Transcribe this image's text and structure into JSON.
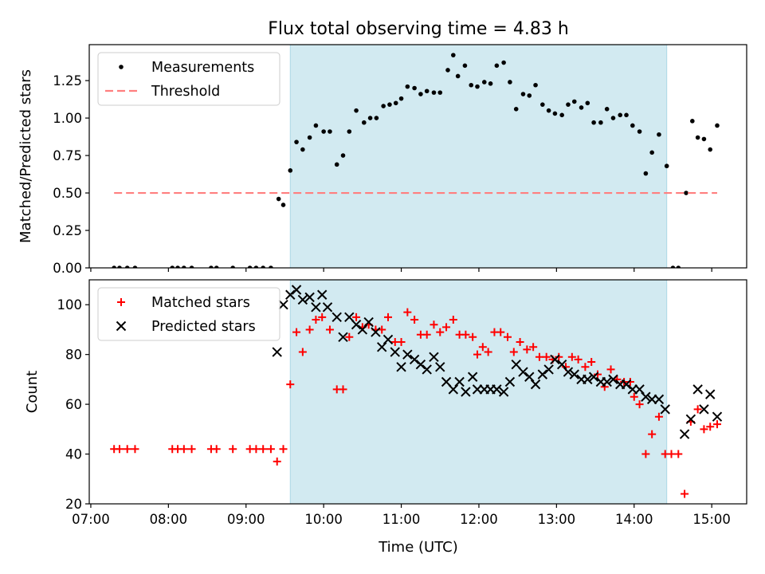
{
  "title": "Flux total observing time = 4.83 h",
  "xlabel": "Time (UTC)",
  "x_ticks": [
    "07:00",
    "08:00",
    "09:00",
    "10:00",
    "11:00",
    "12:00",
    "13:00",
    "14:00",
    "15:00"
  ],
  "chart_data": [
    {
      "type": "scatter",
      "title": "Flux total observing time = 4.83 h",
      "xlabel": "",
      "ylabel": "Matched/Predicted stars",
      "x_unit": "hours UTC (decimal)",
      "xlim": [
        6.98,
        15.45
      ],
      "ylim": [
        0.0,
        1.49
      ],
      "yticks": [
        "0.00",
        "0.25",
        "0.50",
        "0.75",
        "1.00",
        "1.25"
      ],
      "shaded_interval": [
        9.57,
        14.42
      ],
      "shade_color": "#add8e6",
      "legend": [
        "Measurements",
        "Threshold"
      ],
      "legend_location": "upper-left",
      "series": [
        {
          "name": "Measurements",
          "marker": "dot",
          "color": "#000000",
          "points": [
            [
              7.3,
              0
            ],
            [
              7.37,
              0
            ],
            [
              7.47,
              0
            ],
            [
              7.57,
              0
            ],
            [
              8.05,
              0
            ],
            [
              8.12,
              0
            ],
            [
              8.2,
              0
            ],
            [
              8.3,
              0
            ],
            [
              8.55,
              0
            ],
            [
              8.62,
              0
            ],
            [
              8.83,
              0
            ],
            [
              9.05,
              0
            ],
            [
              9.13,
              0
            ],
            [
              9.22,
              0
            ],
            [
              9.32,
              0
            ],
            [
              9.42,
              0.46
            ],
            [
              9.48,
              0.42
            ],
            [
              9.57,
              0.65
            ],
            [
              9.65,
              0.84
            ],
            [
              9.73,
              0.79
            ],
            [
              9.82,
              0.87
            ],
            [
              9.9,
              0.95
            ],
            [
              10.0,
              0.91
            ],
            [
              10.08,
              0.91
            ],
            [
              10.17,
              0.69
            ],
            [
              10.25,
              0.75
            ],
            [
              10.33,
              0.91
            ],
            [
              10.42,
              1.05
            ],
            [
              10.52,
              0.97
            ],
            [
              10.6,
              1.0
            ],
            [
              10.68,
              1.0
            ],
            [
              10.77,
              1.08
            ],
            [
              10.85,
              1.09
            ],
            [
              10.93,
              1.1
            ],
            [
              11.0,
              1.13
            ],
            [
              11.08,
              1.21
            ],
            [
              11.17,
              1.2
            ],
            [
              11.25,
              1.16
            ],
            [
              11.33,
              1.18
            ],
            [
              11.42,
              1.17
            ],
            [
              11.5,
              1.17
            ],
            [
              11.6,
              1.32
            ],
            [
              11.67,
              1.42
            ],
            [
              11.73,
              1.28
            ],
            [
              11.82,
              1.35
            ],
            [
              11.9,
              1.22
            ],
            [
              11.98,
              1.21
            ],
            [
              12.07,
              1.24
            ],
            [
              12.15,
              1.23
            ],
            [
              12.23,
              1.35
            ],
            [
              12.32,
              1.37
            ],
            [
              12.4,
              1.24
            ],
            [
              12.48,
              1.06
            ],
            [
              12.57,
              1.16
            ],
            [
              12.65,
              1.15
            ],
            [
              12.73,
              1.22
            ],
            [
              12.82,
              1.09
            ],
            [
              12.9,
              1.05
            ],
            [
              12.98,
              1.03
            ],
            [
              13.07,
              1.02
            ],
            [
              13.15,
              1.09
            ],
            [
              13.23,
              1.11
            ],
            [
              13.32,
              1.07
            ],
            [
              13.4,
              1.1
            ],
            [
              13.48,
              0.97
            ],
            [
              13.57,
              0.97
            ],
            [
              13.65,
              1.06
            ],
            [
              13.73,
              1.0
            ],
            [
              13.82,
              1.02
            ],
            [
              13.9,
              1.02
            ],
            [
              13.98,
              0.95
            ],
            [
              14.07,
              0.91
            ],
            [
              14.15,
              0.63
            ],
            [
              14.23,
              0.77
            ],
            [
              14.32,
              0.89
            ],
            [
              14.42,
              0.68
            ],
            [
              14.5,
              0
            ],
            [
              14.57,
              0
            ],
            [
              14.67,
              0.5
            ],
            [
              14.75,
              0.98
            ],
            [
              14.82,
              0.87
            ],
            [
              14.9,
              0.86
            ],
            [
              14.98,
              0.79
            ],
            [
              15.07,
              0.95
            ]
          ]
        },
        {
          "name": "Threshold",
          "line_style": "dashed",
          "color": "#ff7f7f",
          "x": [
            7.3,
            15.07
          ],
          "y": [
            0.5,
            0.5
          ]
        }
      ]
    },
    {
      "type": "scatter",
      "xlabel": "Time (UTC)",
      "ylabel": "Count",
      "x_unit": "hours UTC (decimal)",
      "xlim": [
        6.98,
        15.45
      ],
      "ylim": [
        20,
        110
      ],
      "yticks": [
        "20",
        "40",
        "60",
        "80",
        "100"
      ],
      "shaded_interval": [
        9.57,
        14.42
      ],
      "shade_color": "#add8e6",
      "legend": [
        "Matched stars",
        "Predicted stars"
      ],
      "legend_location": "upper-left",
      "series": [
        {
          "name": "Matched stars",
          "marker": "plus",
          "color": "#ff0000",
          "points": [
            [
              7.3,
              42
            ],
            [
              7.37,
              42
            ],
            [
              7.47,
              42
            ],
            [
              7.57,
              42
            ],
            [
              8.05,
              42
            ],
            [
              8.12,
              42
            ],
            [
              8.2,
              42
            ],
            [
              8.3,
              42
            ],
            [
              8.55,
              42
            ],
            [
              8.62,
              42
            ],
            [
              8.83,
              42
            ],
            [
              9.05,
              42
            ],
            [
              9.13,
              42
            ],
            [
              9.22,
              42
            ],
            [
              9.32,
              42
            ],
            [
              9.4,
              37
            ],
            [
              9.48,
              42
            ],
            [
              9.57,
              68
            ],
            [
              9.65,
              89
            ],
            [
              9.73,
              81
            ],
            [
              9.82,
              90
            ],
            [
              9.9,
              94
            ],
            [
              9.98,
              95
            ],
            [
              10.08,
              90
            ],
            [
              10.17,
              66
            ],
            [
              10.25,
              66
            ],
            [
              10.33,
              87
            ],
            [
              10.42,
              95
            ],
            [
              10.5,
              91
            ],
            [
              10.58,
              92
            ],
            [
              10.67,
              90
            ],
            [
              10.75,
              90
            ],
            [
              10.83,
              95
            ],
            [
              10.92,
              85
            ],
            [
              11.0,
              85
            ],
            [
              11.08,
              97
            ],
            [
              11.17,
              94
            ],
            [
              11.25,
              88
            ],
            [
              11.33,
              88
            ],
            [
              11.42,
              92
            ],
            [
              11.5,
              89
            ],
            [
              11.58,
              91
            ],
            [
              11.67,
              94
            ],
            [
              11.75,
              88
            ],
            [
              11.83,
              88
            ],
            [
              11.92,
              87
            ],
            [
              11.98,
              80
            ],
            [
              12.05,
              83
            ],
            [
              12.12,
              81
            ],
            [
              12.2,
              89
            ],
            [
              12.28,
              89
            ],
            [
              12.37,
              87
            ],
            [
              12.45,
              81
            ],
            [
              12.53,
              85
            ],
            [
              12.62,
              82
            ],
            [
              12.7,
              83
            ],
            [
              12.78,
              79
            ],
            [
              12.87,
              79
            ],
            [
              12.95,
              78
            ],
            [
              13.03,
              79
            ],
            [
              13.12,
              75
            ],
            [
              13.2,
              79
            ],
            [
              13.28,
              78
            ],
            [
              13.37,
              75
            ],
            [
              13.45,
              77
            ],
            [
              13.53,
              72
            ],
            [
              13.62,
              67
            ],
            [
              13.7,
              74
            ],
            [
              13.78,
              70
            ],
            [
              13.87,
              69
            ],
            [
              13.95,
              69
            ],
            [
              14.0,
              63
            ],
            [
              14.07,
              60
            ],
            [
              14.15,
              40
            ],
            [
              14.23,
              48
            ],
            [
              14.32,
              55
            ],
            [
              14.4,
              40
            ],
            [
              14.48,
              40
            ],
            [
              14.57,
              40
            ],
            [
              14.65,
              24
            ],
            [
              14.73,
              53
            ],
            [
              14.82,
              58
            ],
            [
              14.9,
              50
            ],
            [
              14.98,
              51
            ],
            [
              15.07,
              52
            ]
          ]
        },
        {
          "name": "Predicted stars",
          "marker": "x",
          "color": "#000000",
          "points": [
            [
              9.4,
              81
            ],
            [
              9.48,
              100
            ],
            [
              9.57,
              104
            ],
            [
              9.65,
              106
            ],
            [
              9.73,
              102
            ],
            [
              9.82,
              103
            ],
            [
              9.9,
              99
            ],
            [
              9.98,
              104
            ],
            [
              10.05,
              99
            ],
            [
              10.17,
              95
            ],
            [
              10.25,
              87
            ],
            [
              10.33,
              95
            ],
            [
              10.42,
              92
            ],
            [
              10.5,
              90
            ],
            [
              10.58,
              93
            ],
            [
              10.67,
              89
            ],
            [
              10.75,
              83
            ],
            [
              10.83,
              86
            ],
            [
              10.92,
              81
            ],
            [
              11.0,
              75
            ],
            [
              11.08,
              80
            ],
            [
              11.17,
              78
            ],
            [
              11.25,
              76
            ],
            [
              11.33,
              74
            ],
            [
              11.42,
              79
            ],
            [
              11.5,
              75
            ],
            [
              11.58,
              69
            ],
            [
              11.67,
              66
            ],
            [
              11.75,
              69
            ],
            [
              11.83,
              65
            ],
            [
              11.92,
              71
            ],
            [
              11.98,
              66
            ],
            [
              12.07,
              66
            ],
            [
              12.15,
              66
            ],
            [
              12.23,
              66
            ],
            [
              12.32,
              65
            ],
            [
              12.4,
              69
            ],
            [
              12.48,
              76
            ],
            [
              12.57,
              73
            ],
            [
              12.65,
              71
            ],
            [
              12.73,
              68
            ],
            [
              12.82,
              72
            ],
            [
              12.9,
              74
            ],
            [
              12.98,
              78
            ],
            [
              13.07,
              76
            ],
            [
              13.15,
              73
            ],
            [
              13.23,
              72
            ],
            [
              13.32,
              70
            ],
            [
              13.4,
              70
            ],
            [
              13.48,
              71
            ],
            [
              13.57,
              69
            ],
            [
              13.65,
              69
            ],
            [
              13.73,
              70
            ],
            [
              13.82,
              68
            ],
            [
              13.9,
              68
            ],
            [
              13.98,
              66
            ],
            [
              14.07,
              66
            ],
            [
              14.15,
              63
            ],
            [
              14.23,
              62
            ],
            [
              14.32,
              62
            ],
            [
              14.4,
              58
            ],
            [
              14.65,
              48
            ],
            [
              14.73,
              54
            ],
            [
              14.82,
              66
            ],
            [
              14.9,
              58
            ],
            [
              14.98,
              64
            ],
            [
              15.07,
              55
            ]
          ]
        }
      ]
    }
  ]
}
